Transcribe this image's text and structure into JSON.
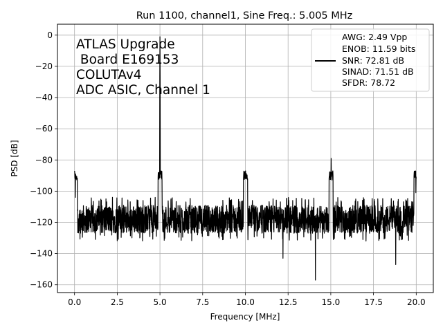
{
  "chart_data": {
    "type": "line",
    "title": "Run 1100, channel1, Sine Freq.: 5.005 MHz",
    "xlabel": "Frequency [MHz]",
    "ylabel": "PSD [dB]",
    "xlim": [
      -1.0,
      21.0
    ],
    "ylim": [
      -165,
      7
    ],
    "xticks": [
      0.0,
      2.5,
      5.0,
      7.5,
      10.0,
      12.5,
      15.0,
      17.5,
      20.0
    ],
    "xtick_labels": [
      "0.0",
      "2.5",
      "5.0",
      "7.5",
      "10.0",
      "12.5",
      "15.0",
      "17.5",
      "20.0"
    ],
    "yticks": [
      0,
      -20,
      -40,
      -60,
      -80,
      -100,
      -120,
      -140,
      -160
    ],
    "ytick_labels": [
      "0",
      "−20",
      "−40",
      "−60",
      "−80",
      "−100",
      "−120",
      "−140",
      "−160"
    ],
    "grid": true,
    "line_color": "#000000",
    "annotation": [
      "ATLAS Upgrade",
      " Board E169153",
      "COLUTAv4",
      "ADC ASIC, Channel 1"
    ],
    "legend": {
      "placement": "top-right",
      "lines": [
        "AWG: 2.49 Vpp",
        "ENOB: 11.59 bits",
        "SNR: 72.81 dB",
        "SINAD: 71.51 dB",
        "SFDR: 78.72"
      ]
    },
    "series": [
      {
        "noise_floor_db": -118,
        "noise_range_db": [
          -132,
          -104
        ],
        "peaks": [
          {
            "x": 5.005,
            "y": -1
          },
          {
            "x": 10.01,
            "y": -87
          },
          {
            "x": 15.015,
            "y": -79
          },
          {
            "x": 19.98,
            "y": -101
          },
          {
            "x": 0.05,
            "y": -104
          }
        ],
        "dips": [
          {
            "x": 14.1,
            "y": -157
          },
          {
            "x": 18.8,
            "y": -147
          },
          {
            "x": 12.2,
            "y": -143
          }
        ]
      }
    ]
  }
}
